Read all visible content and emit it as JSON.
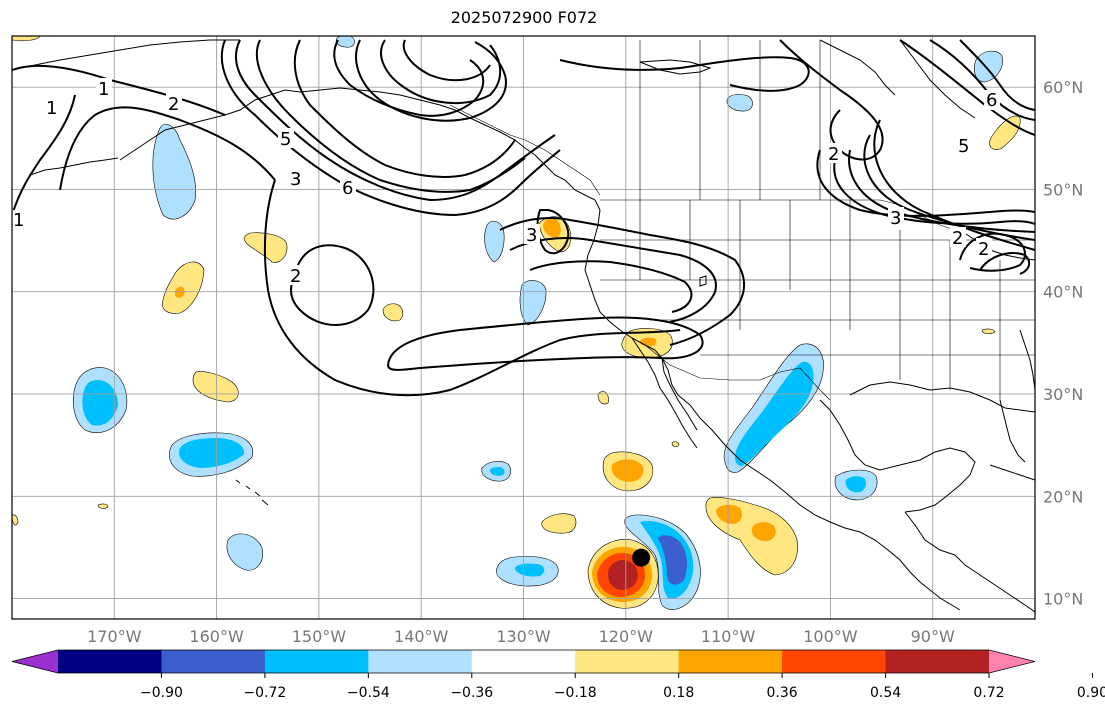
{
  "title": "2025072900 F072",
  "map": {
    "projection": "plate carree",
    "lon_range_deg": [
      -180,
      -80
    ],
    "lat_range_deg": [
      8,
      65
    ],
    "gridlines": true,
    "lat_labels": [
      "60°N",
      "50°N",
      "40°N",
      "30°N",
      "20°N",
      "10°N"
    ],
    "lon_labels": [
      "170°W",
      "160°W",
      "150°W",
      "140°W",
      "130°W",
      "120°W",
      "110°W",
      "100°W",
      "90°W"
    ],
    "contour_labels": [
      "1",
      "1",
      "2",
      "3",
      "5",
      "6",
      "3",
      "2",
      "2",
      "1",
      "2",
      "5",
      "3",
      "2",
      "6"
    ],
    "storm_marker": {
      "lon": -118.5,
      "lat": 14.0,
      "color": "#000000"
    }
  },
  "colorbar": {
    "ticks": [
      "−0.90",
      "−0.72",
      "−0.54",
      "−0.36",
      "−0.18",
      "0.18",
      "0.36",
      "0.54",
      "0.72",
      "0.90"
    ],
    "colors": [
      "#9b30d0",
      "#000080",
      "#3a5fcd",
      "#00bfff",
      "#b0e0ff",
      "#ffffff",
      "#ffe680",
      "#ffa500",
      "#ff4500",
      "#b22222",
      "#ff82ab"
    ]
  },
  "palette": {
    "light_blue": "#b0e0ff",
    "blue": "#00bfff",
    "dark_blue": "#3a5fcd",
    "light_yellow": "#ffe680",
    "orange": "#ffa500",
    "red_orange": "#ff4500",
    "dark_red": "#b22222"
  }
}
